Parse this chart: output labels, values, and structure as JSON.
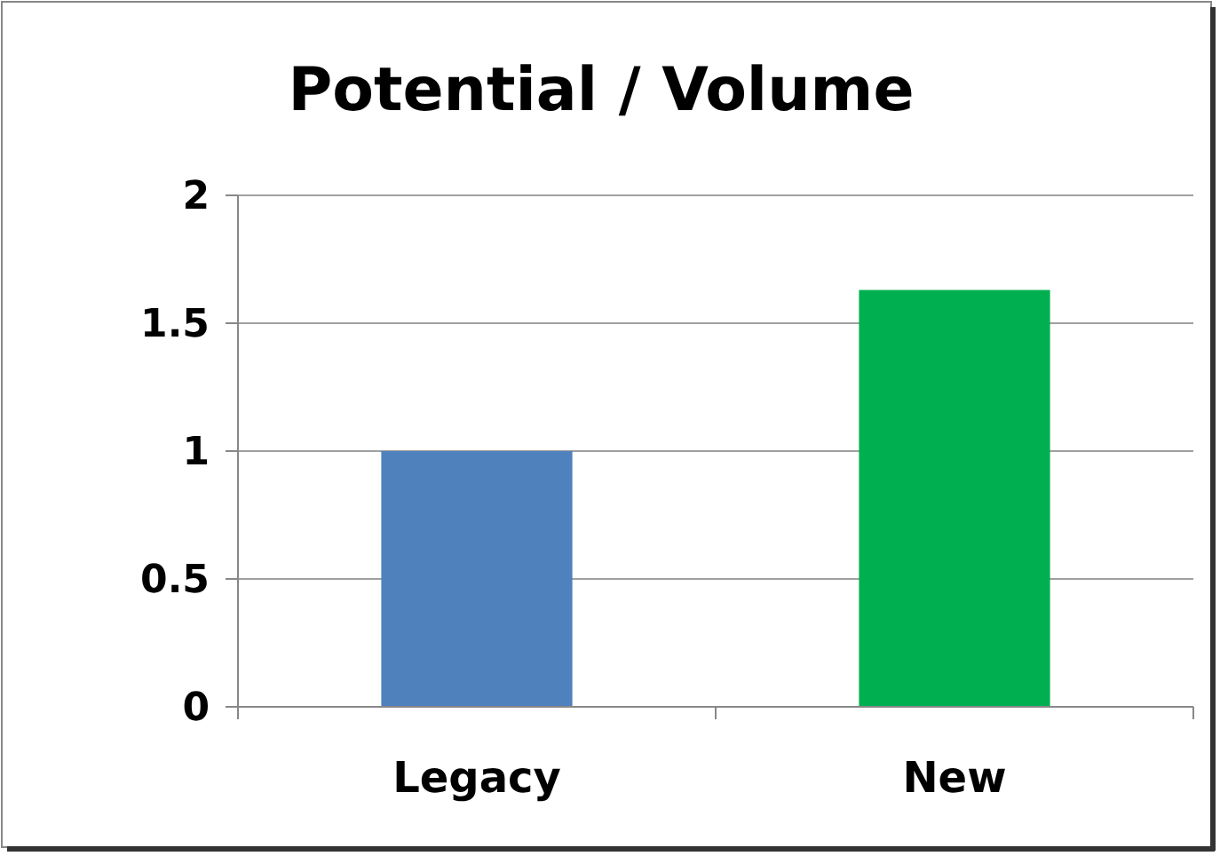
{
  "chart_data": {
    "type": "bar",
    "title": "Potential / Volume",
    "categories": [
      "Legacy",
      "New"
    ],
    "values": [
      1,
      1.63
    ],
    "colors": [
      "#4f81bd",
      "#00b050"
    ],
    "ylim": [
      0,
      2
    ],
    "yticks": [
      0,
      0.5,
      1,
      1.5,
      2
    ],
    "grid": "y"
  }
}
